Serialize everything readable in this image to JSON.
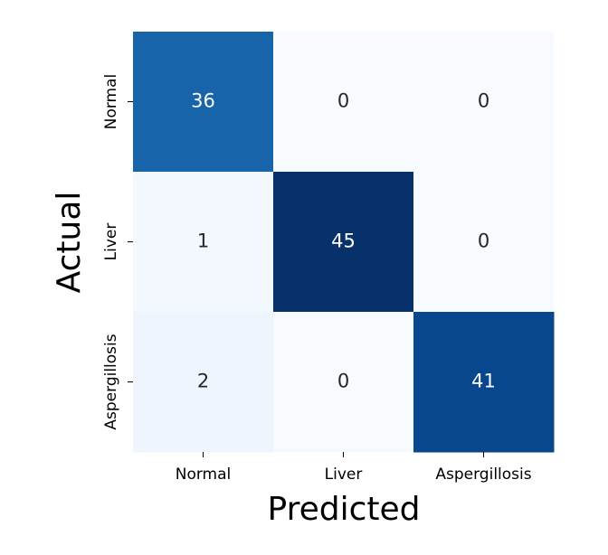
{
  "chart_data": {
    "type": "heatmap",
    "x_categories": [
      "Normal",
      "Liver",
      "Aspergillosis"
    ],
    "y_categories": [
      "Normal",
      "Liver",
      "Aspergillosis"
    ],
    "values": [
      [
        36,
        0,
        0
      ],
      [
        1,
        45,
        0
      ],
      [
        2,
        0,
        41
      ]
    ],
    "xlabel": "Predicted",
    "ylabel": "Actual",
    "cmap": "Blues"
  }
}
